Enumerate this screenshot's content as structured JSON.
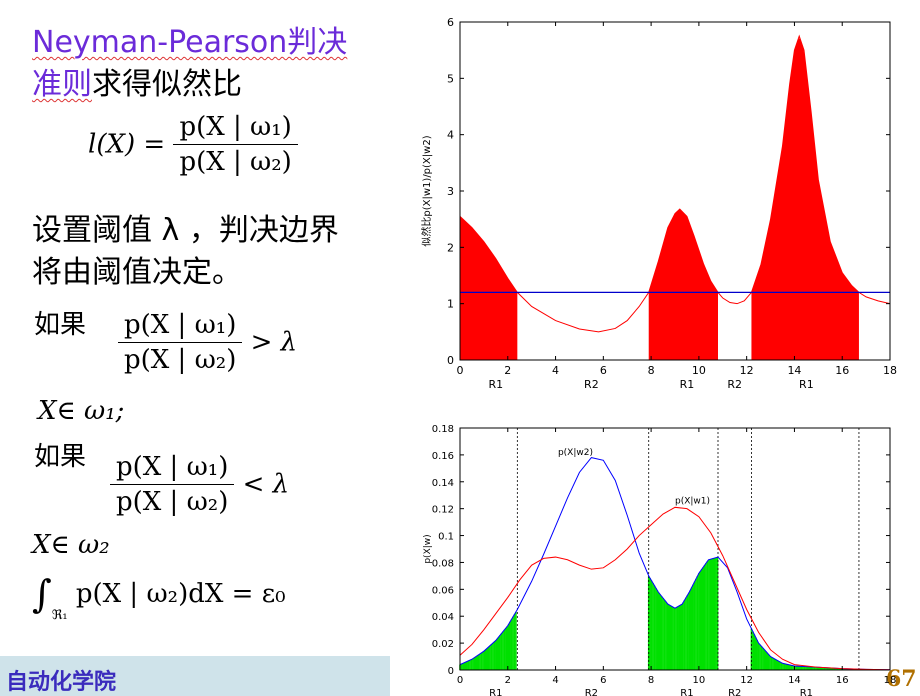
{
  "slide": {
    "title_part1": "Neyman-Pearson判决",
    "title_part2_colored": "准则",
    "title_part2_rest": "求得似然比",
    "ratio_lhs": "l(X) =",
    "ratio_num": "p(X | ω₁)",
    "ratio_den": "p(X | ω₂)",
    "threshold_line1": "设置阈值 λ ，判决边界",
    "threshold_line2": "将由阈值决定。",
    "if_label_1": "如果",
    "cond1_num": "p(X | ω₁)",
    "cond1_den": "p(X | ω₂)",
    "cond1_rel": "> λ",
    "result1": "X∈ ω₁;",
    "if_label_2": "如果",
    "cond2_num": "p(X | ω₁)",
    "cond2_den": "p(X | ω₂)",
    "cond2_rel": "< λ",
    "result2": "X∈ ω₂",
    "integral_sym": "∫",
    "integral_sub": "ℜ₁",
    "integral_body": "p(X | ω₂)dX = ε₀",
    "footer_text": "自动化学院",
    "page_number": "67"
  },
  "chart_data": [
    {
      "type": "area",
      "ylabel": "似然比p(X|w1)/p(X|w2)",
      "xlim": [
        0,
        18
      ],
      "ylim": [
        0,
        6
      ],
      "xticks": [
        0,
        2,
        4,
        6,
        8,
        10,
        12,
        14,
        16,
        18
      ],
      "yticks": [
        0,
        1,
        2,
        3,
        4,
        5,
        6
      ],
      "threshold": 1.2,
      "region_labels": [
        {
          "x": 1.5,
          "label": "R1"
        },
        {
          "x": 5.5,
          "label": "R2"
        },
        {
          "x": 9.5,
          "label": "R1"
        },
        {
          "x": 11.5,
          "label": "R2"
        },
        {
          "x": 14.5,
          "label": "R1"
        }
      ],
      "boundaries": [
        2.4,
        7.9,
        10.8,
        12.2,
        16.7
      ],
      "series": [
        {
          "x": [
            0,
            0.5,
            1,
            1.5,
            2,
            2.4,
            3,
            4,
            5,
            5.8,
            6.5,
            7,
            7.5,
            7.9,
            8.3,
            8.7,
            9,
            9.2,
            9.5,
            9.8,
            10.2,
            10.5,
            10.8,
            11,
            11.3,
            11.6,
            11.9,
            12.2,
            12.6,
            13,
            13.5,
            13.8,
            14,
            14.2,
            14.4,
            14.7,
            15,
            15.5,
            16,
            16.4,
            16.7,
            17,
            17.5,
            18
          ],
          "y": [
            2.55,
            2.35,
            2.1,
            1.8,
            1.45,
            1.2,
            0.95,
            0.7,
            0.55,
            0.5,
            0.56,
            0.7,
            0.95,
            1.2,
            1.75,
            2.35,
            2.6,
            2.68,
            2.55,
            2.2,
            1.7,
            1.4,
            1.2,
            1.1,
            1.02,
            1.0,
            1.05,
            1.2,
            1.7,
            2.5,
            3.8,
            4.9,
            5.5,
            5.75,
            5.5,
            4.4,
            3.2,
            2.1,
            1.55,
            1.32,
            1.2,
            1.12,
            1.05,
            1.0
          ]
        }
      ]
    },
    {
      "type": "line",
      "ylabel": "p(X|w)",
      "xlim": [
        0,
        18
      ],
      "ylim": [
        0,
        0.18
      ],
      "xticks": [
        0,
        2,
        4,
        6,
        8,
        10,
        12,
        14,
        16,
        18
      ],
      "yticks": [
        0,
        0.02,
        0.04,
        0.06,
        0.08,
        0.1,
        0.12,
        0.14,
        0.16,
        0.18
      ],
      "region_labels": [
        {
          "x": 1.5,
          "label": "R1"
        },
        {
          "x": 5.5,
          "label": "R2"
        },
        {
          "x": 9.5,
          "label": "R1"
        },
        {
          "x": 11.5,
          "label": "R2"
        },
        {
          "x": 14.5,
          "label": "R1"
        }
      ],
      "boundaries": [
        2.4,
        7.9,
        10.8,
        12.2,
        16.7
      ],
      "series": [
        {
          "name": "p(X|w2)",
          "color": "#0000ff",
          "x": [
            0,
            0.5,
            1,
            1.5,
            2,
            2.4,
            3,
            3.5,
            4,
            4.5,
            5,
            5.5,
            6,
            6.5,
            7,
            7.5,
            7.9,
            8.3,
            8.7,
            9,
            9.3,
            9.6,
            10,
            10.4,
            10.8,
            11.2,
            11.6,
            12,
            12.5,
            13,
            13.5,
            14,
            15,
            16,
            17,
            18
          ],
          "y": [
            0.004,
            0.008,
            0.014,
            0.022,
            0.033,
            0.045,
            0.066,
            0.086,
            0.107,
            0.128,
            0.147,
            0.158,
            0.156,
            0.141,
            0.115,
            0.087,
            0.07,
            0.058,
            0.049,
            0.046,
            0.049,
            0.058,
            0.072,
            0.082,
            0.084,
            0.076,
            0.058,
            0.038,
            0.02,
            0.01,
            0.005,
            0.003,
            0.002,
            0.001,
            0.0005,
            0.0002
          ]
        },
        {
          "name": "p(X|w1)",
          "color": "#ff0000",
          "x": [
            0,
            0.5,
            1,
            1.5,
            2,
            2.5,
            3,
            3.5,
            4,
            4.5,
            5,
            5.5,
            6,
            6.5,
            7,
            7.5,
            8,
            8.5,
            9,
            9.5,
            10,
            10.5,
            11,
            11.5,
            12,
            12.5,
            13,
            13.5,
            14,
            15,
            16,
            17,
            18
          ],
          "y": [
            0.011,
            0.019,
            0.03,
            0.042,
            0.054,
            0.067,
            0.078,
            0.083,
            0.084,
            0.082,
            0.078,
            0.075,
            0.076,
            0.082,
            0.09,
            0.1,
            0.108,
            0.116,
            0.121,
            0.12,
            0.114,
            0.102,
            0.085,
            0.065,
            0.045,
            0.028,
            0.015,
            0.008,
            0.004,
            0.002,
            0.001,
            0.0005,
            0.0002
          ]
        }
      ]
    }
  ]
}
